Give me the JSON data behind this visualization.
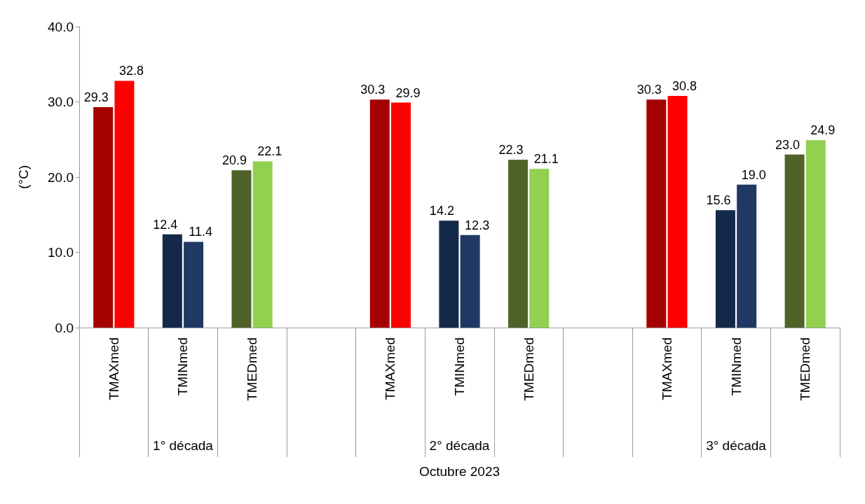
{
  "chart_data": {
    "type": "bar",
    "ylabel": "(°C)",
    "xlabel": "Octubre 2023",
    "categories": [
      "TMAXmed",
      "TMINmed",
      "TMEDmed",
      null,
      "TMAXmed",
      "TMINmed",
      "TMEDmed",
      null,
      "TMAXmed",
      "TMINmed",
      "TMEDmed"
    ],
    "annotations": [
      "1° década",
      "2° década",
      "3° década"
    ],
    "series": [
      {
        "colors": [
          "#a50000",
          "#14284a",
          "#4f6228",
          null,
          "#a50000",
          "#14284a",
          "#4f6228",
          null,
          "#a50000",
          "#14284a",
          "#4f6228"
        ],
        "values": [
          29.3,
          12.4,
          20.9,
          null,
          30.3,
          14.2,
          22.3,
          null,
          30.3,
          15.6,
          23.0
        ],
        "value_labels": [
          "29.3",
          "12.4",
          "20.9",
          null,
          "30.3",
          "14.2",
          "22.3",
          null,
          "30.3",
          "15.6",
          "23.0"
        ]
      },
      {
        "colors": [
          "#ff0000",
          "#1f3864",
          "#92d050",
          null,
          "#ff0000",
          "#1f3864",
          "#92d050",
          null,
          "#ff0000",
          "#1f3864",
          "#92d050"
        ],
        "values": [
          32.8,
          11.4,
          22.1,
          null,
          29.9,
          12.3,
          21.1,
          null,
          30.8,
          19.0,
          24.9
        ],
        "value_labels": [
          "32.8",
          "11.4",
          "22.1",
          null,
          "29.9",
          "12.3",
          "21.1",
          null,
          "30.8",
          "19.0",
          "24.9"
        ]
      }
    ],
    "ylim": [
      0,
      40
    ],
    "yticks": [
      {
        "value": 0,
        "label": "0.0"
      },
      {
        "value": 10,
        "label": "10.0"
      },
      {
        "value": 20,
        "label": "20.0"
      },
      {
        "value": 30,
        "label": "30.0"
      },
      {
        "value": 40,
        "label": "40.0"
      }
    ],
    "grid": false
  }
}
